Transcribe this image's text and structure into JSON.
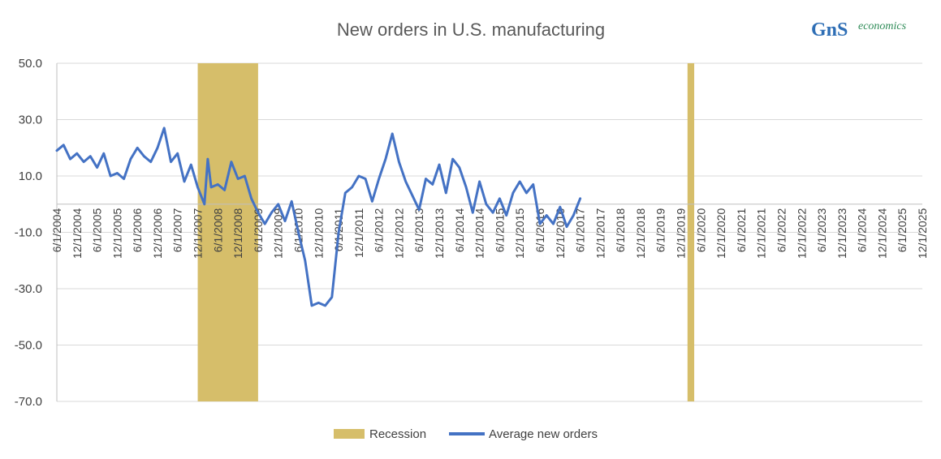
{
  "colors": {
    "recession": "#D6BE6A",
    "series": "#4472C4",
    "grid": "#D9D9D9",
    "axis": "#BFBFBF",
    "logo_blue": "#2E6EB5",
    "logo_green": "#2E8B57"
  },
  "logo": {
    "letters": "GnS",
    "text": "economics"
  },
  "chart_data": {
    "type": "line",
    "title": "New orders in U.S. manufacturing",
    "ylim": [
      -70,
      50
    ],
    "yticks": [
      "50.0",
      "30.0",
      "10.0",
      "-10.0",
      "-30.0",
      "-50.0",
      "-70.0"
    ],
    "ytick_values": [
      50,
      30,
      10,
      -10,
      -30,
      -50,
      -70
    ],
    "x_start": "2004-06",
    "x_end": "2025-12",
    "xticks": [
      "6/1/2004",
      "12/1/2004",
      "6/1/2005",
      "12/1/2005",
      "6/1/2006",
      "12/1/2006",
      "6/1/2007",
      "12/1/2007",
      "6/1/2008",
      "12/1/2008",
      "6/1/2009",
      "12/1/2009",
      "6/1/2010",
      "12/1/2010",
      "6/1/2011",
      "12/1/2011",
      "6/1/2012",
      "12/1/2012",
      "6/1/2013",
      "12/1/2013",
      "6/1/2014",
      "12/1/2014",
      "6/1/2015",
      "12/1/2015",
      "6/1/2016",
      "12/1/2016",
      "6/1/2017",
      "12/1/2017",
      "6/1/2018",
      "12/1/2018",
      "6/1/2019",
      "12/1/2019",
      "6/1/2020",
      "12/1/2020",
      "6/1/2021",
      "12/1/2021",
      "6/1/2022",
      "12/1/2022",
      "6/1/2023",
      "12/1/2023",
      "6/1/2024",
      "12/1/2024",
      "6/1/2025",
      "12/1/2025"
    ],
    "recessions": [
      {
        "start": "2007-12",
        "end": "2009-06"
      },
      {
        "start": "2020-02",
        "end": "2020-04"
      }
    ],
    "series": [
      {
        "name": "Average new orders",
        "points": [
          [
            "2004-06",
            19
          ],
          [
            "2004-08",
            21
          ],
          [
            "2004-10",
            16
          ],
          [
            "2004-12",
            18
          ],
          [
            "2005-02",
            15
          ],
          [
            "2005-04",
            17
          ],
          [
            "2005-06",
            13
          ],
          [
            "2005-08",
            18
          ],
          [
            "2005-10",
            10
          ],
          [
            "2005-12",
            11
          ],
          [
            "2006-02",
            9
          ],
          [
            "2006-04",
            16
          ],
          [
            "2006-06",
            20
          ],
          [
            "2006-08",
            17
          ],
          [
            "2006-10",
            15
          ],
          [
            "2006-12",
            20
          ],
          [
            "2007-02",
            27
          ],
          [
            "2007-04",
            15
          ],
          [
            "2007-06",
            18
          ],
          [
            "2007-08",
            8
          ],
          [
            "2007-10",
            14
          ],
          [
            "2007-12",
            6
          ],
          [
            "2008-02",
            0
          ],
          [
            "2008-03",
            16
          ],
          [
            "2008-04",
            6
          ],
          [
            "2008-06",
            7
          ],
          [
            "2008-08",
            5
          ],
          [
            "2008-10",
            15
          ],
          [
            "2008-12",
            9
          ],
          [
            "2009-02",
            10
          ],
          [
            "2009-04",
            2
          ],
          [
            "2009-06",
            -3
          ],
          [
            "2009-08",
            -7
          ],
          [
            "2009-10",
            -3
          ],
          [
            "2009-12",
            0
          ],
          [
            "2010-02",
            -6
          ],
          [
            "2010-04",
            1
          ],
          [
            "2010-06",
            -10
          ],
          [
            "2010-08",
            -20
          ],
          [
            "2010-10",
            -36
          ],
          [
            "2010-12",
            -35
          ],
          [
            "2011-02",
            -36
          ],
          [
            "2011-04",
            -33
          ],
          [
            "2011-06",
            -10
          ],
          [
            "2011-08",
            4
          ],
          [
            "2011-10",
            6
          ],
          [
            "2011-12",
            10
          ],
          [
            "2012-02",
            9
          ],
          [
            "2012-04",
            1
          ],
          [
            "2012-06",
            9
          ],
          [
            "2012-08",
            16
          ],
          [
            "2012-10",
            25
          ],
          [
            "2012-12",
            15
          ],
          [
            "2013-02",
            8
          ],
          [
            "2013-04",
            3
          ],
          [
            "2013-06",
            -2
          ],
          [
            "2013-08",
            9
          ],
          [
            "2013-10",
            7
          ],
          [
            "2013-12",
            14
          ],
          [
            "2014-02",
            4
          ],
          [
            "2014-04",
            16
          ],
          [
            "2014-06",
            13
          ],
          [
            "2014-08",
            6
          ],
          [
            "2014-10",
            -3
          ],
          [
            "2014-12",
            8
          ],
          [
            "2015-02",
            0
          ],
          [
            "2015-04",
            -3
          ],
          [
            "2015-06",
            2
          ],
          [
            "2015-08",
            -4
          ],
          [
            "2015-10",
            4
          ],
          [
            "2015-12",
            8
          ],
          [
            "2016-02",
            4
          ],
          [
            "2016-04",
            7
          ],
          [
            "2016-06",
            -7
          ],
          [
            "2016-08",
            -4
          ],
          [
            "2016-10",
            -7
          ],
          [
            "2016-12",
            -1
          ],
          [
            "2017-02",
            -8
          ],
          [
            "2017-04",
            -4
          ],
          [
            "2017-06",
            2
          ]
        ]
      }
    ],
    "legend": [
      {
        "label": "Recession",
        "kind": "bar"
      },
      {
        "label": "Average new orders",
        "kind": "line"
      }
    ]
  }
}
